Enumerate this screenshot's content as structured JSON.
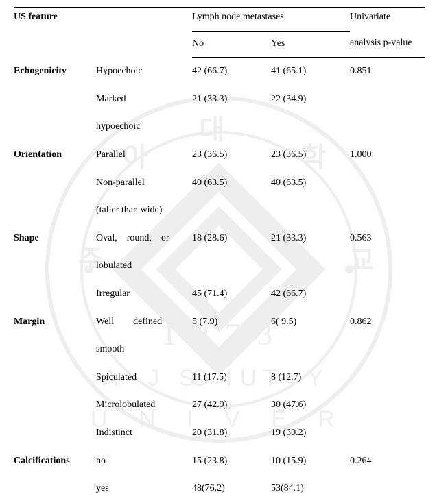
{
  "header": {
    "col_feature": "US feature",
    "col_group": "Lymph node metastases",
    "col_no": "No",
    "col_yes": "Yes",
    "col_p_line1": "Univariate",
    "col_p_line2": "analysis p-value"
  },
  "rows": [
    {
      "feature": "Echogenicity",
      "sub": "Hypoechoic",
      "no": "42 (66.7)",
      "yes": "41 (65.1)",
      "p": "0.851"
    },
    {
      "feature": "",
      "sub": "Marked",
      "no": "21 (33.3)",
      "yes": "22 (34.9)",
      "p": ""
    },
    {
      "feature": "",
      "sub": "hypoechoic",
      "no": "",
      "yes": "",
      "p": ""
    },
    {
      "feature": "Orientation",
      "sub": "Parallel",
      "no": "23 (36.5)",
      "yes": "23 (36.5)",
      "p": "1.000"
    },
    {
      "feature": "",
      "sub": "Non-parallel",
      "no": "40 (63.5)",
      "yes": "40 (63.5)",
      "p": ""
    },
    {
      "feature": "",
      "sub": "(taller than wide)",
      "no": "",
      "yes": "",
      "p": ""
    },
    {
      "feature": "Shape",
      "sub": "Oval, round, or",
      "no": "18 (28.6)",
      "yes": "21 (33.3)",
      "p": "0.563"
    },
    {
      "feature": "",
      "sub": "lobulated",
      "no": "",
      "yes": "",
      "p": ""
    },
    {
      "feature": "",
      "sub": "Irregular",
      "no": "45 (71.4)",
      "yes": "42 (66.7)",
      "p": ""
    },
    {
      "feature": "Margin",
      "sub": "Well  defined",
      "no": "5 (7.9)",
      "yes": "6( 9.5)",
      "p": "0.862"
    },
    {
      "feature": "",
      "sub": "smooth",
      "no": "",
      "yes": "",
      "p": ""
    },
    {
      "feature": "",
      "sub": "Spiculated",
      "no": "11 (17.5)",
      "yes": "8 (12.7)",
      "p": ""
    },
    {
      "feature": "",
      "sub": "Microlobulated",
      "no": "27 (42.9)",
      "yes": "30 (47.6)",
      "p": ""
    },
    {
      "feature": "",
      "sub": "Indistinct",
      "no": "20 (31.8)",
      "yes": "19 (30.2)",
      "p": ""
    },
    {
      "feature": "Calcifications",
      "sub": "no",
      "no": "15 (23.8)",
      "yes": "10 (15.9)",
      "p": "0.264"
    },
    {
      "feature": "",
      "sub": "yes",
      "no": "48(76.2)",
      "yes": "53(84.1)",
      "p": ""
    }
  ],
  "style": {
    "font_family": "Times New Roman",
    "font_size_pt": 11,
    "text_color": "#000000",
    "background_color": "#ffffff",
    "border_color": "#000000",
    "watermark_opacity": 0.11,
    "watermark_colors": {
      "stroke": "#6b6b6b",
      "fill": "#8a8a8a"
    }
  }
}
